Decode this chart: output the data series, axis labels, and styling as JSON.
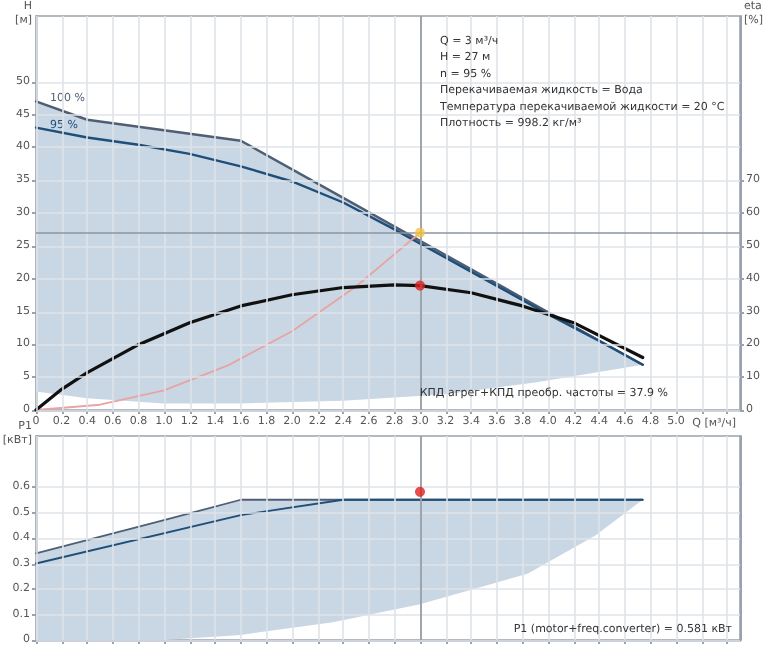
{
  "chart_data": [
    {
      "type": "line",
      "xlabel": "Q [м³/ч]",
      "ylabel": "H [м]",
      "y2label": "eta [%]",
      "xlim": [
        0,
        5.5
      ],
      "xticks": [
        0,
        0.2,
        0.4,
        0.6,
        0.8,
        {
          "value": 1,
          "label": "1.0"
        },
        1.2,
        1.4,
        1.6,
        1.8,
        {
          "value": 2,
          "label": "2.0"
        },
        2.2,
        2.4,
        2.6,
        2.8,
        {
          "value": 3,
          "label": "3.0"
        },
        3.2,
        3.4,
        3.6,
        3.8,
        {
          "value": 4,
          "label": "4.0"
        },
        4.2,
        4.4,
        4.6,
        4.8,
        {
          "value": 5,
          "label": "5.0"
        },
        {
          "value": 5.2,
          "label": null
        },
        {
          "value": 5.4,
          "label": null
        }
      ],
      "ylim": [
        0,
        60
      ],
      "yticks": [
        0,
        5,
        10,
        15,
        20,
        25,
        30,
        35,
        40,
        45,
        50
      ],
      "y2lim": [
        0,
        120
      ],
      "y2ticks": [
        0,
        10,
        20,
        30,
        40,
        50,
        60,
        70
      ],
      "grid": true,
      "marker": "none",
      "annotations": [
        "Q = 3 м³/ч",
        "H = 27 м",
        "n = 95 %",
        "Перекачиваемая жидкость = Вода",
        "Температура перекачиваемой жидкости = 20 °C",
        "Плотность = 998.2 кг/м³",
        "КПД агрег+КПД преобр. частоты = 37.9 %"
      ],
      "ref_lines": [
        {
          "axis": "y",
          "value": 27,
          "color": "#8c959e"
        },
        {
          "axis": "x",
          "value": 3,
          "color": "#8c959e"
        }
      ],
      "series": [
        {
          "type": "line",
          "name": "100 %",
          "color": "#4f5f73",
          "x": [
            0,
            0.4,
            1.0,
            1.6,
            2.4,
            3.2,
            3.9,
            4.74
          ],
          "values": [
            47,
            44.2,
            42.6,
            41,
            32.3,
            23.6,
            16,
            6.9
          ],
          "lower": [
            2.8,
            1.8,
            1,
            1,
            1.4,
            2.4,
            4.2,
            6.9
          ],
          "upper": [
            47,
            44.2,
            42.6,
            41,
            32.3,
            23.6,
            16,
            6.9
          ]
        },
        {
          "type": "line",
          "name": "95 %",
          "color": "#1f4e79",
          "x": [
            0,
            0.4,
            0.8,
            1.2,
            1.6,
            2.0,
            2.4,
            2.8,
            3.2,
            3.6,
            4.0,
            4.4,
            4.74
          ],
          "values": [
            43,
            41.5,
            40.4,
            39,
            37.1,
            34.8,
            31.6,
            27.5,
            23.2,
            18.9,
            14.6,
            10.5,
            6.9
          ]
        },
        {
          "type": "line",
          "color": "#e8a3a3",
          "x": [
            0,
            0.5,
            1,
            1.5,
            2,
            2.5,
            3
          ],
          "values": [
            0,
            0.8,
            3,
            6.8,
            12,
            18.8,
            27
          ]
        },
        {
          "type": "line",
          "axis": "y2",
          "color": "#111111",
          "x": [
            0,
            0.2,
            0.4,
            0.8,
            1.2,
            1.6,
            2.0,
            2.4,
            2.8,
            3.0,
            3.4,
            3.8,
            4.2,
            4.74
          ],
          "values": [
            0,
            6.3,
            11.4,
            19.9,
            26.6,
            31.7,
            35.1,
            37.3,
            38.1,
            37.9,
            35.7,
            31.7,
            26.6,
            16
          ]
        },
        {
          "type": "scatter",
          "marker": "circle",
          "color": "#f5c242",
          "x": [
            3
          ],
          "values": [
            27
          ]
        },
        {
          "type": "scatter",
          "marker": "circle",
          "axis": "y2",
          "color": "#e02020",
          "x": [
            3
          ],
          "values": [
            37.9
          ]
        }
      ]
    },
    {
      "type": "line",
      "ylabel": "P1 [кВт]",
      "tick_labels": "y",
      "xlim": [
        0,
        5.5
      ],
      "xticks": [
        0,
        0.2,
        0.4,
        0.6,
        0.8,
        1,
        1.2,
        1.4,
        1.6,
        1.8,
        2,
        2.2,
        2.4,
        2.6,
        2.8,
        3,
        3.2,
        3.4,
        3.6,
        3.8,
        4,
        4.2,
        4.4,
        4.6,
        4.8,
        5,
        5.2,
        5.4
      ],
      "ylim": [
        0,
        0.8
      ],
      "yticks": [
        0,
        0.1,
        0.2,
        0.3,
        0.4,
        0.5,
        0.6
      ],
      "grid": true,
      "marker": "none",
      "annotations": [
        "P1 (motor+freq.converter) = 0.581 кВт"
      ],
      "ref_lines": [
        {
          "axis": "x",
          "value": 3,
          "color": "#8c959e"
        }
      ],
      "series": [
        {
          "type": "line",
          "color": "#4f5f73",
          "x": [
            0,
            1.0,
            1.6,
            2.32,
            3.0,
            3.84,
            4.37,
            4.74
          ],
          "values": [
            0.34,
            0.47,
            0.55,
            0.55,
            0.55,
            0.55,
            0.55,
            0.55
          ],
          "lower": [
            0,
            0,
            0.02,
            0.07,
            0.14,
            0.26,
            0.41,
            0.55
          ],
          "upper": [
            0.34,
            0.47,
            0.55,
            0.55,
            0.55,
            0.55,
            0.55,
            0.55
          ]
        },
        {
          "type": "line",
          "color": "#1f4e79",
          "x": [
            0,
            1.6,
            2.4,
            4.74
          ],
          "values": [
            0.3,
            0.49,
            0.55,
            0.55
          ]
        },
        {
          "type": "scatter",
          "marker": "circle",
          "color": "#e02020",
          "x": [
            3
          ],
          "values": [
            0.581
          ]
        }
      ]
    }
  ]
}
